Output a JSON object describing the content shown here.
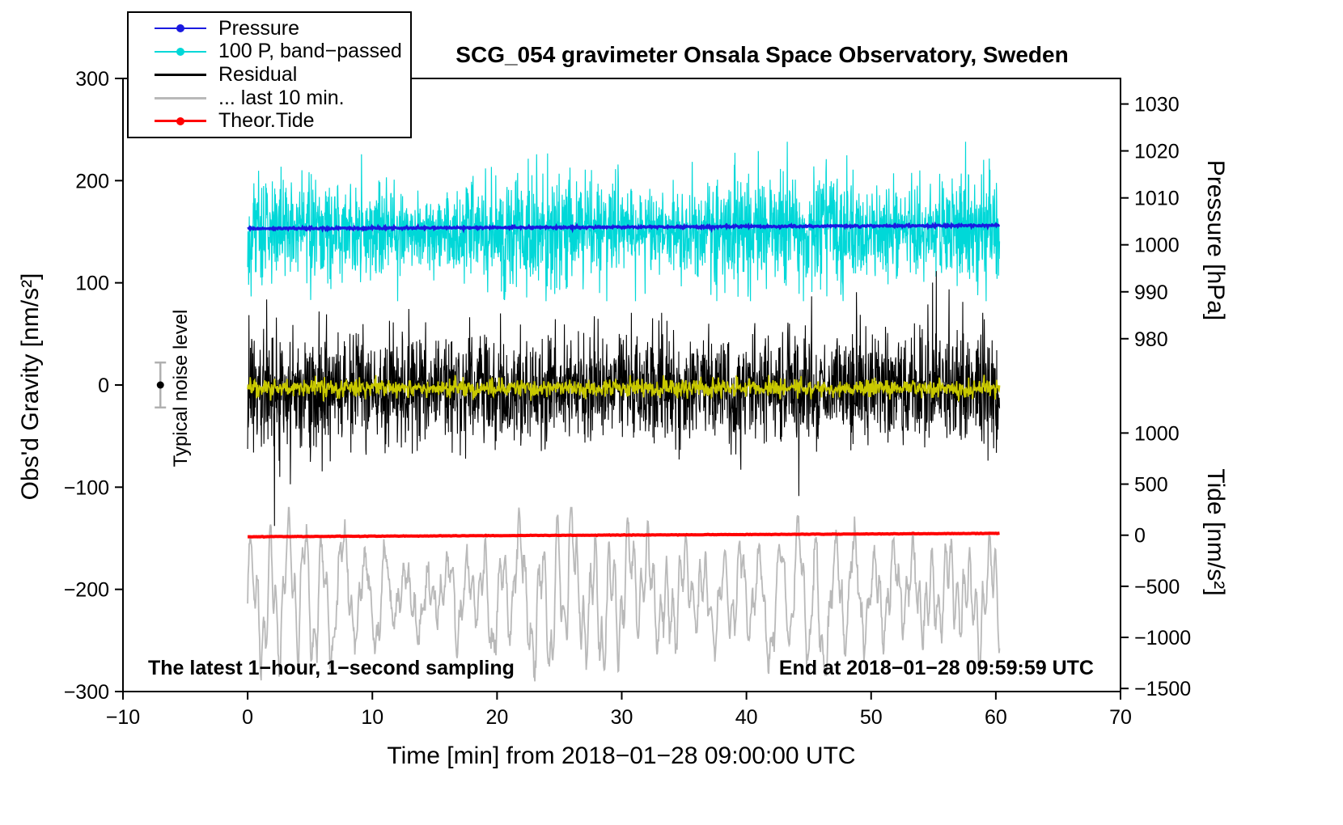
{
  "annotations": {
    "noise_label": "Typical noise level",
    "sampling_note": "The latest 1−hour, 1−second sampling",
    "end_note": "End at 2018−01−28 09:59:59 UTC"
  },
  "legend": {
    "items": [
      {
        "label": "Pressure",
        "color": "#1a1ae0",
        "marker": true,
        "line_width": 2
      },
      {
        "label": "100 P, band−passed",
        "color": "#00d8d8",
        "marker": true,
        "line_width": 2
      },
      {
        "label": "Residual",
        "color": "#000000",
        "marker": false,
        "line_width": 3
      },
      {
        "label": "... last 10 min.",
        "color": "#b9b9b9",
        "marker": false,
        "line_width": 3
      },
      {
        "label": "Theor.Tide",
        "color": "#ff0000",
        "marker": true,
        "line_width": 3
      }
    ]
  },
  "chart_data": {
    "type": "line",
    "title": "SCG_054 gravimeter Onsala Space Observatory, Sweden",
    "xlabel": "Time [min] from 2018−01−28 09:00:00 UTC",
    "ylabel_left": "Obs'd Gravity [nm/s²]",
    "ylabel_pressure": "Pressure [hPa]",
    "ylabel_tide": "Tide [nm/s²]",
    "xlim": [
      -10,
      70
    ],
    "ylim_left": [
      -300,
      300
    ],
    "grid": false,
    "legend_position": "top-left",
    "x_ticks": [
      {
        "v": -10,
        "label": "−10"
      },
      {
        "v": 0,
        "label": "0"
      },
      {
        "v": 10,
        "label": "10"
      },
      {
        "v": 20,
        "label": "20"
      },
      {
        "v": 30,
        "label": "30"
      },
      {
        "v": 40,
        "label": "40"
      },
      {
        "v": 50,
        "label": "50"
      },
      {
        "v": 60,
        "label": "60"
      },
      {
        "v": 70,
        "label": "70"
      }
    ],
    "y_ticks_left": [
      {
        "v": 300,
        "label": "300"
      },
      {
        "v": 200,
        "label": "200"
      },
      {
        "v": 100,
        "label": "100"
      },
      {
        "v": 0,
        "label": "0"
      },
      {
        "v": -100,
        "label": "−100"
      },
      {
        "v": -200,
        "label": "−200"
      },
      {
        "v": -300,
        "label": "−300"
      }
    ],
    "pressure_ticks": [
      {
        "label": "1030",
        "g": 275.0
      },
      {
        "label": "1020",
        "g": 229.1
      },
      {
        "label": "1010",
        "g": 183.1
      },
      {
        "label": "1000",
        "g": 137.2
      },
      {
        "label": "990",
        "g": 91.2
      },
      {
        "label": "980",
        "g": 45.3
      }
    ],
    "tide_ticks": [
      {
        "label": "1000",
        "g": -47
      },
      {
        "label": "500",
        "g": -97
      },
      {
        "label": "0",
        "g": -147
      },
      {
        "label": "−500",
        "g": -197
      },
      {
        "label": "−1000",
        "g": -247
      },
      {
        "label": "−1500",
        "g": -297
      }
    ],
    "noise_marker": {
      "x": -7,
      "gravity": 0,
      "error": 22
    },
    "series": [
      {
        "name": "100 P, band-passed",
        "color": "#00d8d8",
        "width": 1.2,
        "axis": "gravity-offset",
        "kind": "modnoise",
        "rate": 40,
        "x_range": [
          0,
          60.3
        ],
        "mean": 151,
        "base_std": 16,
        "grow": 0.12,
        "mod": 8,
        "modT": 6.5,
        "spike_prob": 0.012,
        "spike_scale": 1.8,
        "clamp": [
          82,
          238
        ],
        "seed": 202
      },
      {
        "name": "Pressure",
        "color": "#1a1ae0",
        "width": 3.2,
        "axis": "pressure",
        "units": "hPa",
        "value_start": 1003.4,
        "value_end": 1004.1,
        "kind": "trend_noise",
        "rate": 20,
        "x_range": [
          0,
          60.3
        ],
        "g_start": 153.0,
        "g_end": 156.2,
        "noise": 0.5,
        "seed": 101
      },
      {
        "name": "Residual",
        "color": "#000000",
        "width": 1.1,
        "axis": "gravity",
        "kind": "noise_spiky",
        "rate": 40,
        "x_range": [
          0,
          60.3
        ],
        "mean": -4,
        "std": 27,
        "spike_prob": 0.02,
        "spike_mult": 3.0,
        "clamp": [
          -138,
          120
        ],
        "seed": 303
      },
      {
        "name": "Residual smoothed",
        "color": "#c8c800",
        "width": 1.8,
        "axis": "gravity",
        "kind": "noise",
        "rate": 25,
        "x_range": [
          0,
          60.3
        ],
        "mean": -3,
        "std": 4.5,
        "clamp": [
          -18,
          12
        ],
        "seed": 404
      },
      {
        "name": "... last 10 min.",
        "color": "#b9b9b9",
        "width": 1.8,
        "axis": "gravity-offset",
        "kind": "wave",
        "rate": 25,
        "x_range": [
          0,
          60.3
        ],
        "mean": -206,
        "components": [
          {
            "amp": 40,
            "period": 1.55
          },
          {
            "amp": 22,
            "period": 0.52
          },
          {
            "amp": 15,
            "period": 3.9
          }
        ],
        "amp_mod": 0.4,
        "noise": 5,
        "clamp": [
          -290,
          -120
        ],
        "seed": 505
      },
      {
        "name": "Theor.Tide",
        "color": "#ff0000",
        "width": 4,
        "axis": "tide",
        "units": "nm/s²",
        "value_start": -15,
        "value_end": 20,
        "kind": "trend_noise",
        "rate": 10,
        "x_range": [
          0,
          60.3
        ],
        "g_start": -148.5,
        "g_end": -145.2,
        "noise": 0.12,
        "seed": 606
      }
    ]
  }
}
